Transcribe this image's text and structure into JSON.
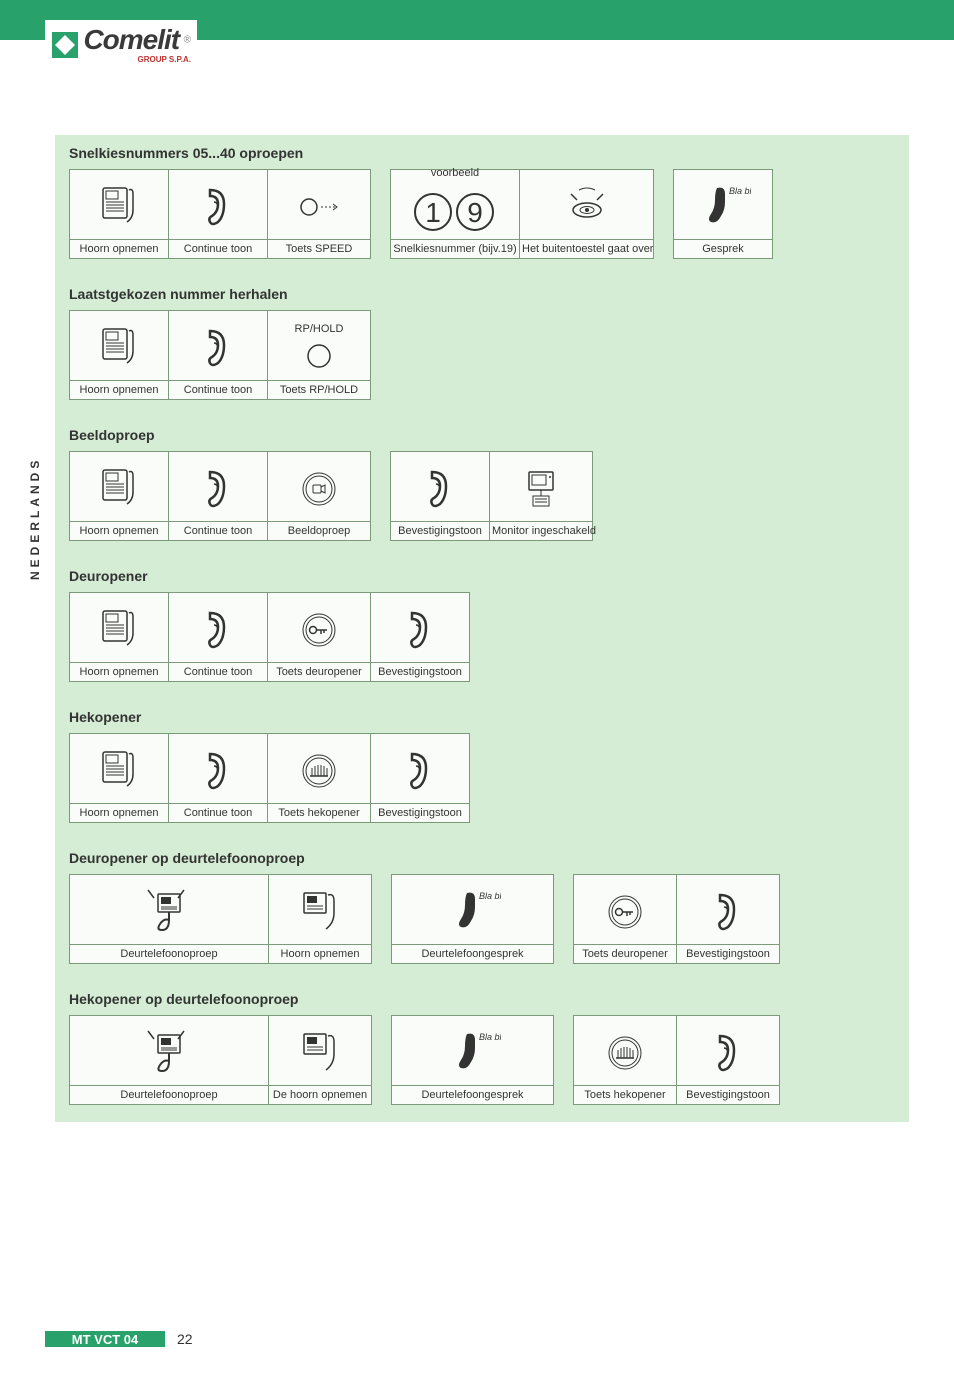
{
  "brand": {
    "name": "Comelit",
    "sub": "GROUP S.P.A."
  },
  "side_label": "NEDERLANDS",
  "footer": {
    "code": "MT VCT 04",
    "page": "22"
  },
  "example_label": "voorbeeld",
  "digits": {
    "a": "1",
    "b": "9"
  },
  "bla": "Bla bla",
  "rphold": "RP/HOLD",
  "sections": [
    {
      "title": "Snelkiesnummers 05...40 oproepen",
      "cells": [
        {
          "label": "Hoorn opnemen",
          "icon": "phone",
          "w": "w1"
        },
        {
          "label": "Continue toon",
          "icon": "ear",
          "w": "w1"
        },
        {
          "label": "Toets SPEED",
          "icon": "speed",
          "w": "w1b"
        },
        {
          "label": "Snelkiesnummer (bijv.19)",
          "icon": "digits",
          "w": "w2",
          "top": "voorbeeld",
          "gapBefore": true
        },
        {
          "label": "Het buitentoestel gaat over",
          "icon": "speaker",
          "w": "w3"
        },
        {
          "label": "Gesprek",
          "icon": "handset-talk",
          "w": "w1",
          "gapBefore": true
        }
      ]
    },
    {
      "title": "Laatstgekozen nummer herhalen",
      "cells": [
        {
          "label": "Hoorn opnemen",
          "icon": "phone",
          "w": "w1"
        },
        {
          "label": "Continue toon",
          "icon": "ear",
          "w": "w1"
        },
        {
          "label": "Toets RP/HOLD",
          "icon": "rphold",
          "w": "w1b"
        }
      ]
    },
    {
      "title": "Beeldoproep",
      "cells": [
        {
          "label": "Hoorn opnemen",
          "icon": "phone",
          "w": "w1"
        },
        {
          "label": "Continue toon",
          "icon": "ear",
          "w": "w1"
        },
        {
          "label": "Beeldoproep",
          "icon": "btn-video",
          "w": "w1b"
        },
        {
          "label": "Bevestigingstoon",
          "icon": "ear",
          "w": "w1",
          "gapBefore": true
        },
        {
          "label": "Monitor ingeschakeld",
          "icon": "monitor",
          "w": "w1b"
        }
      ]
    },
    {
      "title": "Deuropener",
      "cells": [
        {
          "label": "Hoorn opnemen",
          "icon": "phone",
          "w": "w1"
        },
        {
          "label": "Continue toon",
          "icon": "ear",
          "w": "w1"
        },
        {
          "label": "Toets deuropener",
          "icon": "btn-key",
          "w": "w1b"
        },
        {
          "label": "Bevestigingstoon",
          "icon": "ear",
          "w": "w1"
        }
      ]
    },
    {
      "title": "Hekopener",
      "cells": [
        {
          "label": "Hoorn opnemen",
          "icon": "phone",
          "w": "w1"
        },
        {
          "label": "Continue toon",
          "icon": "ear",
          "w": "w1"
        },
        {
          "label": "Toets hekopener",
          "icon": "btn-gate",
          "w": "w1b"
        },
        {
          "label": "Bevestigingstoon",
          "icon": "ear",
          "w": "w1"
        }
      ]
    },
    {
      "title": "Deuropener op deurtelefoonoproep",
      "cells": [
        {
          "label": "Deurtelefoonoproep",
          "icon": "door-ring",
          "w": "wbig"
        },
        {
          "label": "Hoorn opnemen",
          "icon": "door-phone",
          "w": "w1b"
        },
        {
          "label": "Deurtelefoongesprek",
          "icon": "handset-talk",
          "w": "wmed",
          "gapBefore": true
        },
        {
          "label": "Toets deuropener",
          "icon": "btn-key",
          "w": "w1b",
          "gapBefore": true
        },
        {
          "label": "Bevestigingstoon",
          "icon": "ear",
          "w": "w1b"
        }
      ]
    },
    {
      "title": "Hekopener op deurtelefoonoproep",
      "cells": [
        {
          "label": "Deurtelefoonoproep",
          "icon": "door-ring",
          "w": "wbig"
        },
        {
          "label": "De hoorn opnemen",
          "icon": "door-phone",
          "w": "w1b"
        },
        {
          "label": "Deurtelefoongesprek",
          "icon": "handset-talk",
          "w": "wmed",
          "gapBefore": true
        },
        {
          "label": "Toets hekopener",
          "icon": "btn-gate",
          "w": "w1b",
          "gapBefore": true
        },
        {
          "label": "Bevestigingstoon",
          "icon": "ear",
          "w": "w1b"
        }
      ]
    }
  ]
}
